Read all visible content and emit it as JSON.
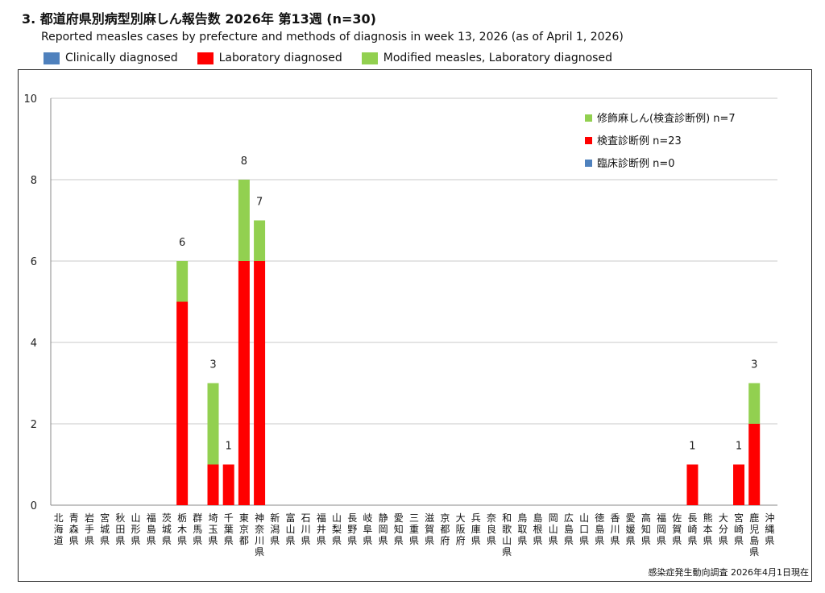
{
  "header": {
    "title": "3. 都道府県別病型別麻しん報告数  2026年 第13週 (n=30)",
    "subtitle": "Reported measles cases by prefecture and methods of diagnosis in week 13, 2026 (as of April 1, 2026)"
  },
  "top_legend": [
    {
      "label": "Clinically diagnosed",
      "color": "#4f81bd"
    },
    {
      "label": "Laboratory diagnosed",
      "color": "#ff0000"
    },
    {
      "label": "Modified measles, Laboratory diagnosed",
      "color": "#92d050"
    }
  ],
  "footer": "感染症発生動向調査 2026年4月1日現在",
  "chart_data": {
    "type": "bar",
    "stacked": true,
    "ylim": [
      0,
      10
    ],
    "yticks": [
      0,
      2,
      4,
      6,
      8,
      10
    ],
    "grid": true,
    "categories": [
      "北海道",
      "青森県",
      "岩手県",
      "宮城県",
      "秋田県",
      "山形県",
      "福島県",
      "茨城県",
      "栃木県",
      "群馬県",
      "埼玉県",
      "千葉県",
      "東京都",
      "神奈川県",
      "新潟県",
      "富山県",
      "石川県",
      "福井県",
      "山梨県",
      "長野県",
      "岐阜県",
      "静岡県",
      "愛知県",
      "三重県",
      "滋賀県",
      "京都府",
      "大阪府",
      "兵庫県",
      "奈良県",
      "和歌山県",
      "鳥取県",
      "島根県",
      "岡山県",
      "広島県",
      "山口県",
      "徳島県",
      "香川県",
      "愛媛県",
      "高知県",
      "福岡県",
      "佐賀県",
      "長崎県",
      "熊本県",
      "大分県",
      "宮崎県",
      "鹿児島県",
      "沖縄県"
    ],
    "series": [
      {
        "name": "臨床診断例 n=0",
        "color": "#4f81bd",
        "values": [
          0,
          0,
          0,
          0,
          0,
          0,
          0,
          0,
          0,
          0,
          0,
          0,
          0,
          0,
          0,
          0,
          0,
          0,
          0,
          0,
          0,
          0,
          0,
          0,
          0,
          0,
          0,
          0,
          0,
          0,
          0,
          0,
          0,
          0,
          0,
          0,
          0,
          0,
          0,
          0,
          0,
          0,
          0,
          0,
          0,
          0,
          0
        ]
      },
      {
        "name": "検査診断例 n=23",
        "color": "#ff0000",
        "values": [
          0,
          0,
          0,
          0,
          0,
          0,
          0,
          0,
          5,
          0,
          1,
          1,
          6,
          6,
          0,
          0,
          0,
          0,
          0,
          0,
          0,
          0,
          0,
          0,
          0,
          0,
          0,
          0,
          0,
          0,
          0,
          0,
          0,
          0,
          0,
          0,
          0,
          0,
          0,
          0,
          0,
          1,
          0,
          0,
          1,
          2,
          0
        ]
      },
      {
        "name": "修飾麻しん(検査診断例) n=7",
        "color": "#92d050",
        "values": [
          0,
          0,
          0,
          0,
          0,
          0,
          0,
          0,
          1,
          0,
          2,
          0,
          2,
          1,
          0,
          0,
          0,
          0,
          0,
          0,
          0,
          0,
          0,
          0,
          0,
          0,
          0,
          0,
          0,
          0,
          0,
          0,
          0,
          0,
          0,
          0,
          0,
          0,
          0,
          0,
          0,
          0,
          0,
          0,
          0,
          1,
          0
        ]
      }
    ],
    "totals": [
      {
        "category": "栃木県",
        "label": "6"
      },
      {
        "category": "埼玉県",
        "label": "3"
      },
      {
        "category": "千葉県",
        "label": "1"
      },
      {
        "category": "東京都",
        "label": "8"
      },
      {
        "category": "神奈川県",
        "label": "7"
      },
      {
        "category": "長崎県",
        "label": "1"
      },
      {
        "category": "宮崎県",
        "label": "1"
      },
      {
        "category": "鹿児島県",
        "label": "3"
      }
    ],
    "legend_order": [
      "修飾麻しん(検査診断例) n=7",
      "検査診断例 n=23",
      "臨床診断例 n=0"
    ]
  }
}
